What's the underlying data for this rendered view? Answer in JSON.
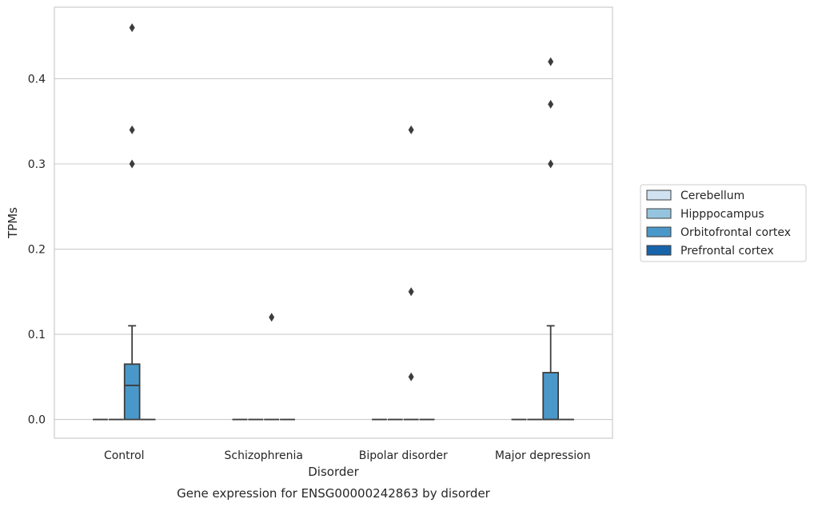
{
  "chart_data": {
    "type": "box",
    "title": "Gene expression for ENSG00000242863 by disorder",
    "xlabel": "Disorder",
    "ylabel": "TPMs",
    "ylim": [
      -0.022,
      0.484
    ],
    "yticks": [
      0.0,
      0.1,
      0.2,
      0.3,
      0.4
    ],
    "ytick_labels": [
      "0.0",
      "0.1",
      "0.2",
      "0.3",
      "0.4"
    ],
    "grid": true,
    "legend_position": "right",
    "categories": [
      "Control",
      "Schizophrenia",
      "Bipolar disorder",
      "Major depression"
    ],
    "series": [
      {
        "name": "Cerebellum",
        "color": "#d0e1f2",
        "boxes": [
          {
            "q1": 0,
            "median": 0,
            "q3": 0,
            "whisker_low": 0,
            "whisker_high": 0,
            "outliers": []
          },
          {
            "q1": 0,
            "median": 0,
            "q3": 0,
            "whisker_low": 0,
            "whisker_high": 0,
            "outliers": []
          },
          {
            "q1": 0,
            "median": 0,
            "q3": 0,
            "whisker_low": 0,
            "whisker_high": 0,
            "outliers": []
          },
          {
            "q1": 0,
            "median": 0,
            "q3": 0,
            "whisker_low": 0,
            "whisker_high": 0,
            "outliers": []
          }
        ]
      },
      {
        "name": "Hipppocampus",
        "color": "#94c4df",
        "boxes": [
          {
            "q1": 0,
            "median": 0,
            "q3": 0,
            "whisker_low": 0,
            "whisker_high": 0,
            "outliers": []
          },
          {
            "q1": 0,
            "median": 0,
            "q3": 0,
            "whisker_low": 0,
            "whisker_high": 0,
            "outliers": []
          },
          {
            "q1": 0,
            "median": 0,
            "q3": 0,
            "whisker_low": 0,
            "whisker_high": 0,
            "outliers": []
          },
          {
            "q1": 0,
            "median": 0,
            "q3": 0,
            "whisker_low": 0,
            "whisker_high": 0,
            "outliers": []
          }
        ]
      },
      {
        "name": "Orbitofrontal cortex",
        "color": "#4a98c9",
        "boxes": [
          {
            "q1": 0,
            "median": 0.04,
            "q3": 0.065,
            "whisker_low": 0,
            "whisker_high": 0.11,
            "outliers": [
              0.3,
              0.34,
              0.46
            ]
          },
          {
            "q1": 0,
            "median": 0,
            "q3": 0,
            "whisker_low": 0,
            "whisker_high": 0,
            "outliers": [
              0.12
            ]
          },
          {
            "q1": 0,
            "median": 0,
            "q3": 0,
            "whisker_low": 0,
            "whisker_high": 0,
            "outliers": [
              0.05,
              0.15,
              0.34
            ]
          },
          {
            "q1": 0,
            "median": 0,
            "q3": 0.055,
            "whisker_low": 0,
            "whisker_high": 0.11,
            "outliers": [
              0.3,
              0.37,
              0.42
            ]
          }
        ]
      },
      {
        "name": "Prefrontal cortex",
        "color": "#1764ab",
        "boxes": [
          {
            "q1": 0,
            "median": 0,
            "q3": 0,
            "whisker_low": 0,
            "whisker_high": 0,
            "outliers": []
          },
          {
            "q1": 0,
            "median": 0,
            "q3": 0,
            "whisker_low": 0,
            "whisker_high": 0,
            "outliers": []
          },
          {
            "q1": 0,
            "median": 0,
            "q3": 0,
            "whisker_low": 0,
            "whisker_high": 0,
            "outliers": []
          },
          {
            "q1": 0,
            "median": 0,
            "q3": 0,
            "whisker_low": 0,
            "whisker_high": 0,
            "outliers": []
          }
        ]
      }
    ]
  }
}
